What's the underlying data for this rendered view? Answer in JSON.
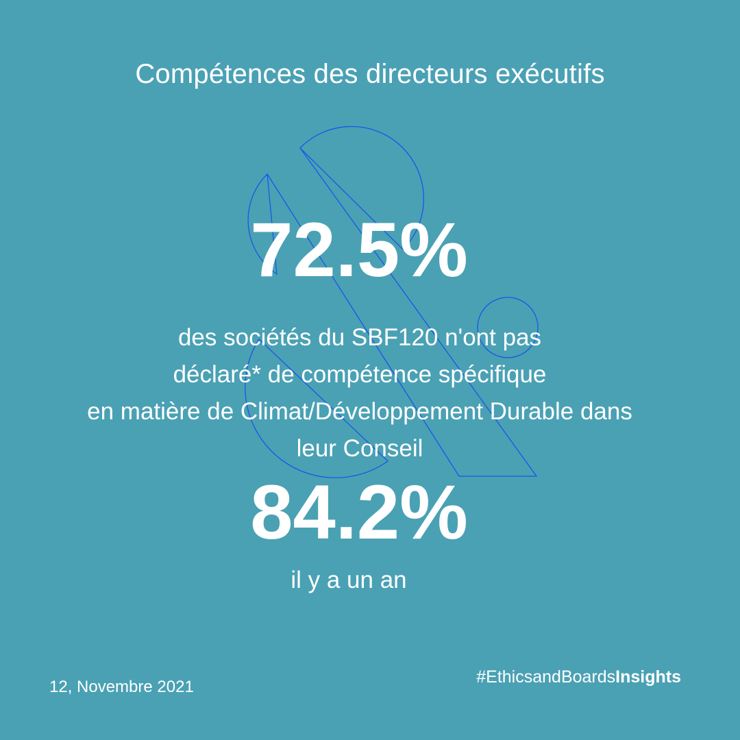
{
  "title": "Compétences des directeurs exécutifs",
  "stat_current": "72.5%",
  "description_lines": [
    "des sociétés du SBF120 n'ont pas",
    "déclaré* de compétence spécifique",
    "en matière de Climat/Développement Durable dans",
    "leur Conseil"
  ],
  "stat_previous": "84.2%",
  "previous_label": "il y a un an",
  "date": "12, Novembre 2021",
  "hashtag": {
    "prefix": "#EthicsandBoards",
    "bold": "Insights"
  },
  "colors": {
    "background": "#4aa1b4",
    "text": "#ffffff",
    "decoration_stroke": "#1a56e8"
  }
}
